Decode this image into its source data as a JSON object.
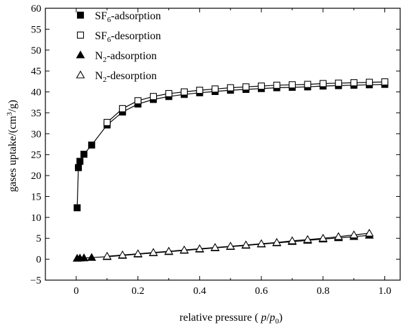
{
  "chart_data": {
    "type": "scatter",
    "xlabel": {
      "prefix": "relative pressure ( ",
      "var_p": "p",
      "slash": "/",
      "var_p0": "p",
      "sub0": "0",
      "suffix": ")"
    },
    "ylabel": {
      "prefix": "gases uptake/(cm",
      "sup": "3",
      "suffix": "/g)"
    },
    "xlim": [
      -0.1,
      1.05
    ],
    "ylim": [
      -5,
      60
    ],
    "x_ticks": [
      0,
      0.2,
      0.4,
      0.6,
      0.8,
      1.0
    ],
    "x_tick_labels": [
      "0",
      "0.2",
      "0.4",
      "0.6",
      "0.8",
      "1.0"
    ],
    "y_ticks": [
      -5,
      0,
      5,
      10,
      15,
      20,
      25,
      30,
      35,
      40,
      45,
      50,
      55,
      60
    ],
    "y_tick_labels": [
      "−5",
      "0",
      "5",
      "10",
      "15",
      "20",
      "25",
      "30",
      "35",
      "40",
      "45",
      "50",
      "55",
      "60"
    ],
    "grid": false,
    "legend_position": "top-left",
    "series": [
      {
        "name": {
          "pre": "SF",
          "sub": "6",
          "post": "-adsorption"
        },
        "marker": "square-filled",
        "x": [
          0.003,
          0.007,
          0.012,
          0.025,
          0.05,
          0.1,
          0.15,
          0.2,
          0.25,
          0.3,
          0.35,
          0.4,
          0.45,
          0.5,
          0.55,
          0.6,
          0.65,
          0.7,
          0.75,
          0.8,
          0.85,
          0.9,
          0.95,
          1.0
        ],
        "y": [
          12.3,
          21.9,
          23.4,
          25.1,
          27.3,
          32.1,
          35.2,
          37.1,
          38.2,
          38.9,
          39.4,
          39.8,
          40.1,
          40.4,
          40.6,
          40.8,
          41.0,
          41.1,
          41.2,
          41.4,
          41.5,
          41.6,
          41.7,
          41.8
        ]
      },
      {
        "name": {
          "pre": "SF",
          "sub": "6",
          "post": "-desorption"
        },
        "marker": "square-open",
        "x": [
          0.1,
          0.15,
          0.2,
          0.25,
          0.3,
          0.35,
          0.4,
          0.45,
          0.5,
          0.55,
          0.6,
          0.65,
          0.7,
          0.75,
          0.8,
          0.85,
          0.9,
          0.95,
          1.0
        ],
        "y": [
          32.7,
          36.0,
          37.9,
          38.9,
          39.6,
          40.0,
          40.4,
          40.7,
          41.0,
          41.2,
          41.4,
          41.6,
          41.7,
          41.8,
          42.0,
          42.1,
          42.2,
          42.3,
          42.4
        ]
      },
      {
        "name": {
          "pre": "N",
          "sub": "2",
          "post": "-adsorption"
        },
        "marker": "triangle-filled",
        "x": [
          0.003,
          0.012,
          0.025,
          0.05,
          0.1,
          0.15,
          0.2,
          0.25,
          0.3,
          0.35,
          0.4,
          0.45,
          0.5,
          0.55,
          0.6,
          0.65,
          0.7,
          0.75,
          0.8,
          0.85,
          0.9,
          0.95
        ],
        "y": [
          0.2,
          0.25,
          0.3,
          0.4,
          0.6,
          0.9,
          1.2,
          1.5,
          1.8,
          2.1,
          2.4,
          2.7,
          3.0,
          3.3,
          3.6,
          3.9,
          4.2,
          4.5,
          4.8,
          5.1,
          5.4,
          5.7
        ]
      },
      {
        "name": {
          "pre": "N",
          "sub": "2",
          "post": "-desorption"
        },
        "marker": "triangle-open",
        "x": [
          0.1,
          0.15,
          0.2,
          0.25,
          0.3,
          0.35,
          0.4,
          0.45,
          0.5,
          0.55,
          0.6,
          0.65,
          0.7,
          0.75,
          0.8,
          0.85,
          0.9,
          0.95
        ],
        "y": [
          0.7,
          1.0,
          1.3,
          1.6,
          1.9,
          2.2,
          2.5,
          2.8,
          3.1,
          3.4,
          3.7,
          4.0,
          4.4,
          4.7,
          5.0,
          5.4,
          5.8,
          6.2
        ]
      }
    ]
  }
}
